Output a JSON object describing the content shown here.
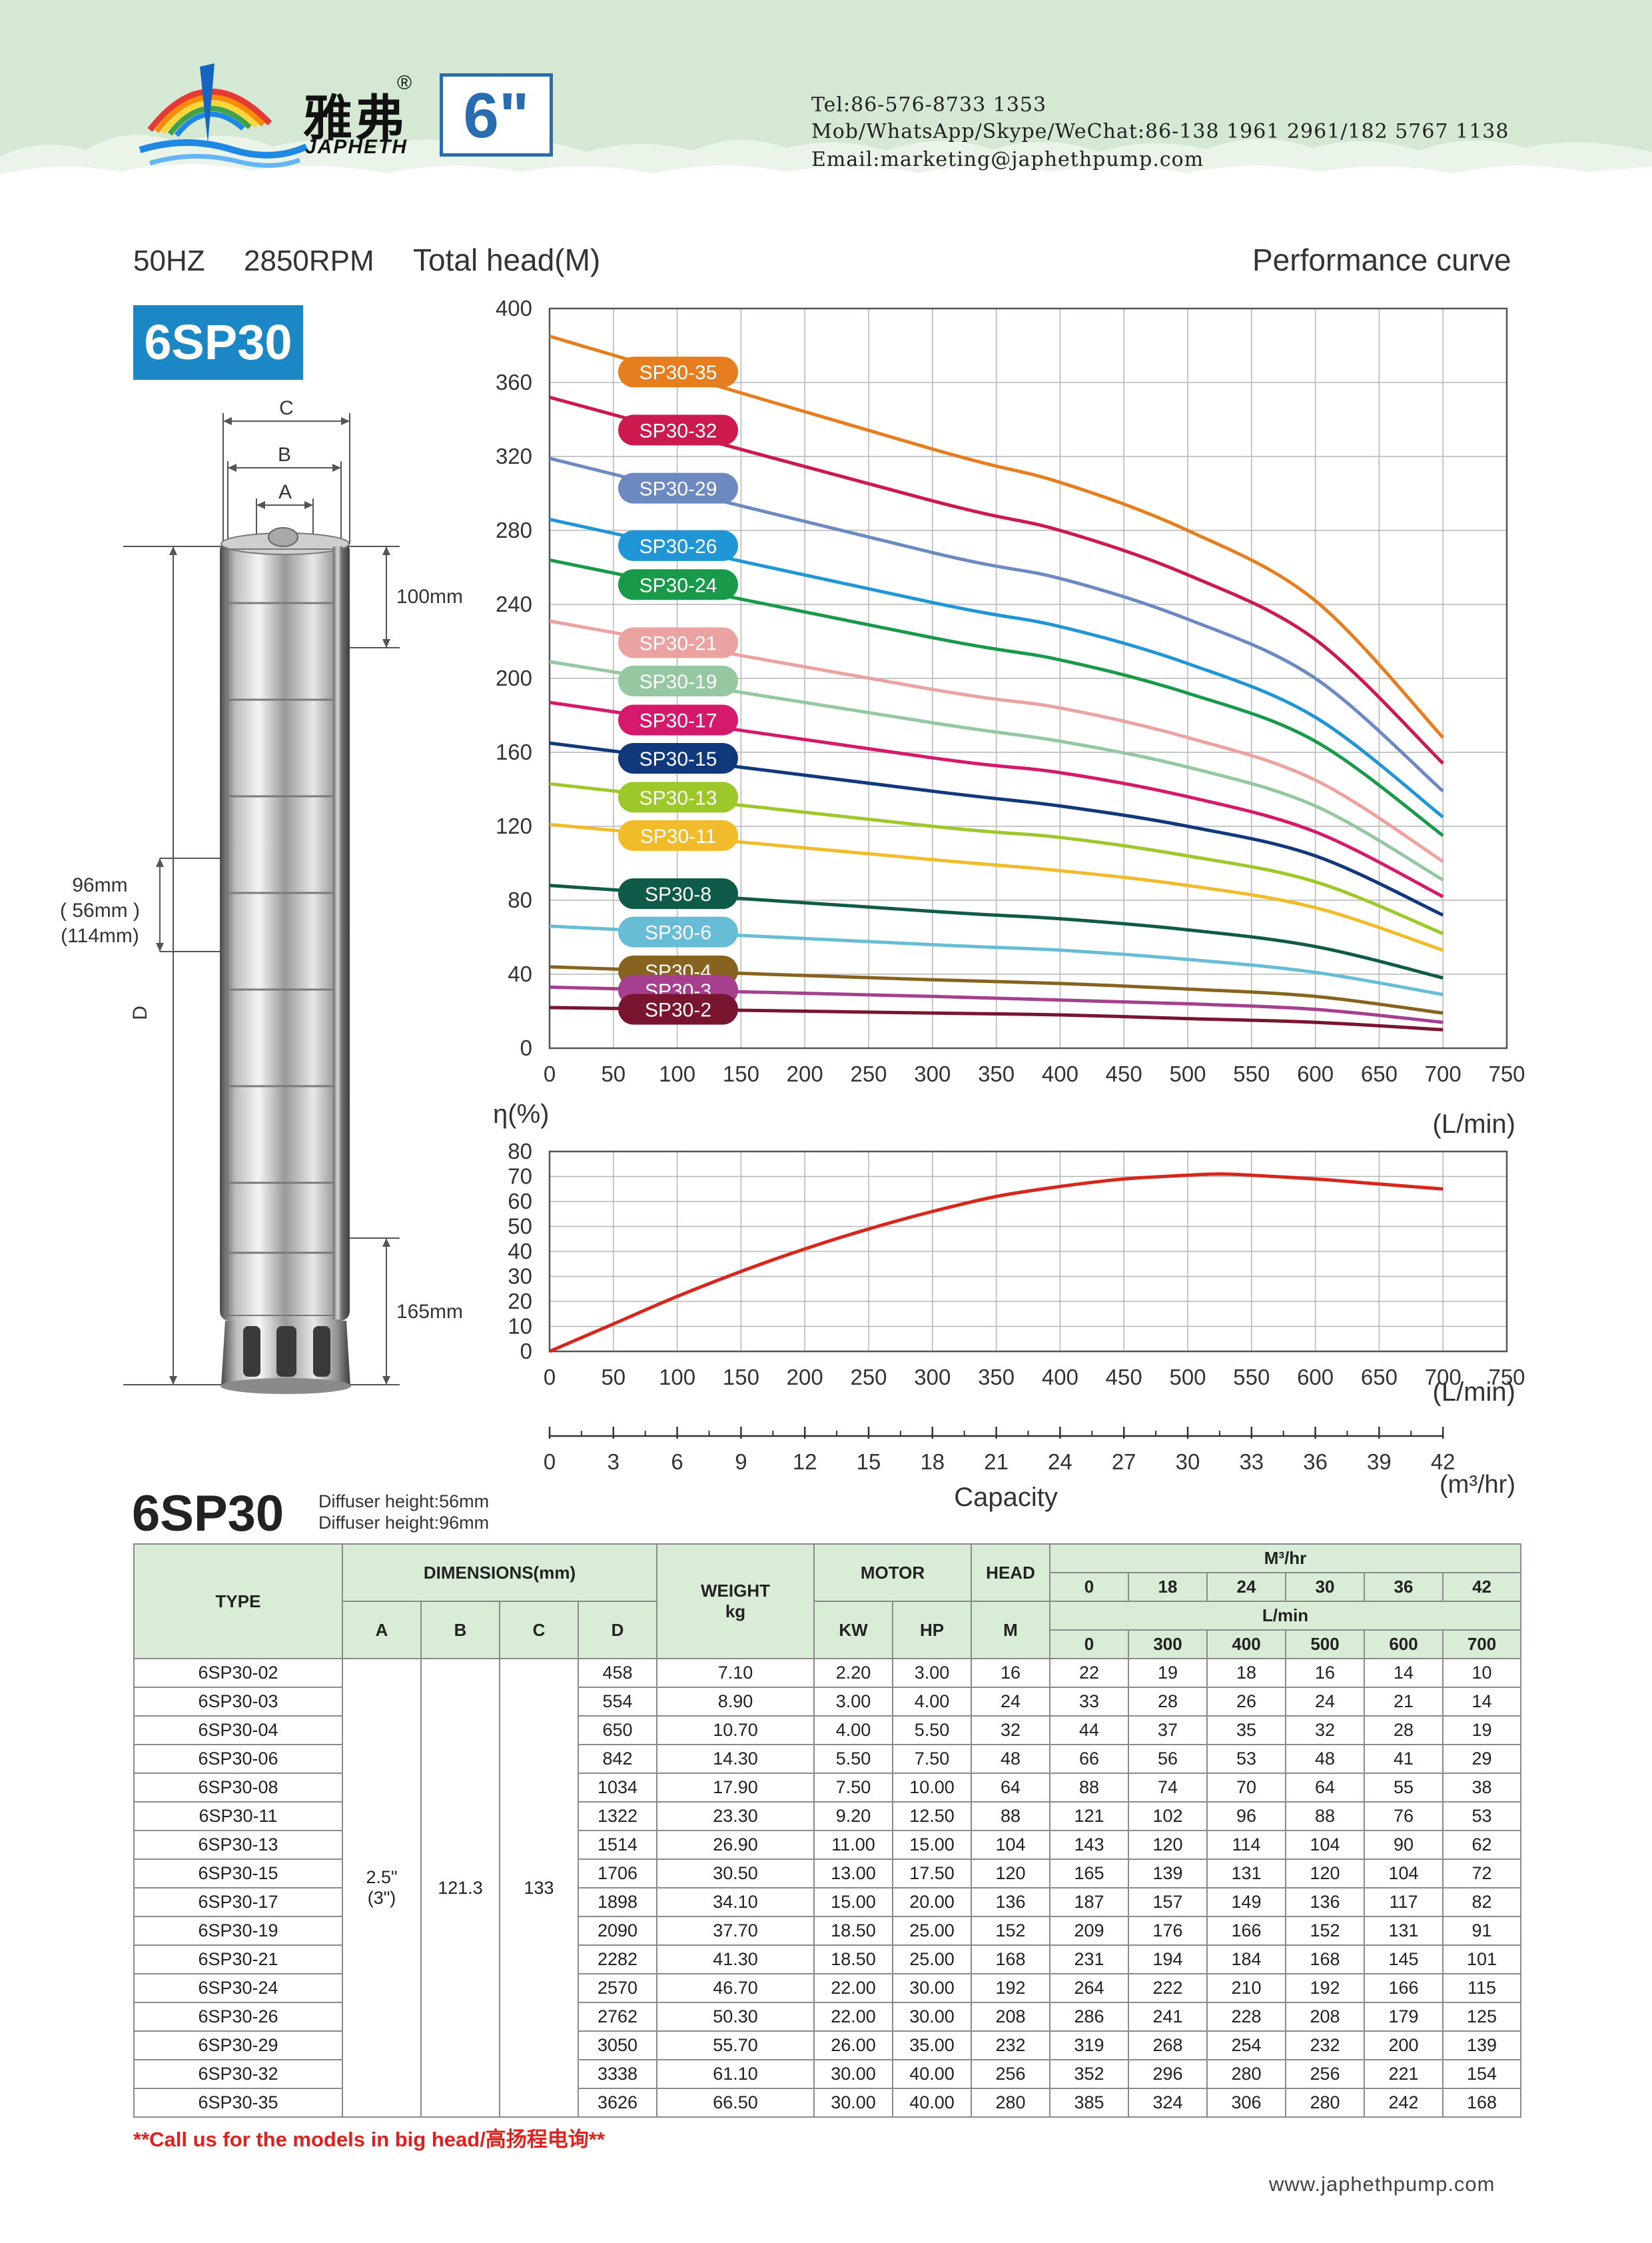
{
  "header": {
    "brand_cn": "雅弗",
    "brand_reg": "®",
    "brand_en": "JAPHETH",
    "size_label": "6\"",
    "contacts": [
      "Tel:86-576-8733 1353",
      "Mob/WhatsApp/Skype/WeChat:86-138 1961 2961/182 5767 1138",
      "Email:marketing@japhethpump.com"
    ]
  },
  "headings": {
    "freq": "50HZ",
    "rpm": "2850RPM",
    "total_head": "Total head(M)",
    "performance": "Performance curve",
    "model_badge": "6SP30",
    "table_model": "6SP30",
    "diffuser_1": "Diffuser height:56mm",
    "diffuser_2": "Diffuser height:96mm"
  },
  "drawing": {
    "dim_c": "C",
    "dim_b": "B",
    "dim_a": "A",
    "dim_d": "D",
    "top_len": "100mm",
    "mid_len_1": "96mm",
    "mid_len_2": "( 56mm )",
    "mid_len_3": "(114mm)",
    "bottom_len": "165mm"
  },
  "chart_data": [
    {
      "type": "line",
      "title": "Performance curve",
      "ylabel": "Total head(M)",
      "xlabel": "(L/min)",
      "xlim": [
        0,
        750
      ],
      "ylim": [
        0,
        400
      ],
      "x_ticks": [
        0,
        50,
        100,
        150,
        200,
        250,
        300,
        350,
        400,
        450,
        500,
        550,
        600,
        650,
        700,
        750
      ],
      "y_ticks": [
        0,
        40,
        80,
        120,
        160,
        200,
        240,
        280,
        320,
        360,
        400
      ],
      "grid": true,
      "x": [
        0,
        300,
        400,
        500,
        600,
        700
      ],
      "series": [
        {
          "name": "SP30-35",
          "color": "#e67e1f",
          "values": [
            385,
            324,
            306,
            280,
            242,
            168
          ]
        },
        {
          "name": "SP30-32",
          "color": "#cc1a4f",
          "values": [
            352,
            296,
            280,
            256,
            221,
            154
          ]
        },
        {
          "name": "SP30-29",
          "color": "#6d89c2",
          "values": [
            319,
            268,
            254,
            232,
            200,
            139
          ]
        },
        {
          "name": "SP30-26",
          "color": "#2196d6",
          "values": [
            286,
            241,
            228,
            208,
            179,
            125
          ]
        },
        {
          "name": "SP30-24",
          "color": "#199a4a",
          "values": [
            264,
            222,
            210,
            192,
            166,
            115
          ]
        },
        {
          "name": "SP30-21",
          "color": "#eaa3a0",
          "values": [
            231,
            194,
            184,
            168,
            145,
            101
          ]
        },
        {
          "name": "SP30-19",
          "color": "#95c8a1",
          "values": [
            209,
            176,
            166,
            152,
            131,
            91
          ]
        },
        {
          "name": "SP30-17",
          "color": "#d61a6b",
          "values": [
            187,
            157,
            149,
            136,
            117,
            82
          ]
        },
        {
          "name": "SP30-15",
          "color": "#12387c",
          "values": [
            165,
            139,
            131,
            120,
            104,
            72
          ]
        },
        {
          "name": "SP30-13",
          "color": "#9cc929",
          "values": [
            143,
            120,
            114,
            104,
            90,
            62
          ]
        },
        {
          "name": "SP30-11",
          "color": "#f2bb2a",
          "values": [
            121,
            102,
            96,
            88,
            76,
            53
          ]
        },
        {
          "name": "SP30-8",
          "color": "#0f5a48",
          "values": [
            88,
            74,
            70,
            64,
            55,
            38
          ]
        },
        {
          "name": "SP30-6",
          "color": "#67bcd6",
          "values": [
            66,
            56,
            53,
            48,
            41,
            29
          ]
        },
        {
          "name": "SP30-4",
          "color": "#86641f",
          "values": [
            44,
            37,
            35,
            32,
            28,
            19
          ]
        },
        {
          "name": "SP30-3",
          "color": "#a63f8e",
          "values": [
            33,
            28,
            26,
            24,
            21,
            14
          ]
        },
        {
          "name": "SP30-2",
          "color": "#7a1530",
          "values": [
            22,
            19,
            18,
            16,
            14,
            10
          ]
        }
      ]
    },
    {
      "type": "line",
      "ylabel": "η(%)",
      "xlabel": "(L/min)",
      "xlim": [
        0,
        750
      ],
      "ylim": [
        0,
        80
      ],
      "x_ticks": [
        0,
        50,
        100,
        150,
        200,
        250,
        300,
        350,
        400,
        450,
        500,
        550,
        600,
        650,
        700,
        750
      ],
      "y_ticks": [
        0,
        10,
        20,
        30,
        40,
        50,
        60,
        70,
        80
      ],
      "grid": true,
      "series": [
        {
          "color": "#d8261c",
          "x": [
            0,
            50,
            100,
            150,
            200,
            250,
            300,
            350,
            400,
            450,
            500,
            525,
            550,
            600,
            650,
            700
          ],
          "values": [
            0,
            11,
            22,
            32,
            41,
            49,
            56,
            62,
            66,
            69,
            70.5,
            71,
            70.5,
            69,
            67,
            65
          ]
        }
      ]
    },
    {
      "type": "axis",
      "xlabel": "Capacity",
      "unit": "(m³/hr)",
      "ticks": [
        0,
        3,
        6,
        9,
        12,
        15,
        18,
        21,
        24,
        27,
        30,
        33,
        36,
        39,
        42
      ]
    }
  ],
  "table": {
    "type_header": "TYPE",
    "dimensions_header": "DIMENSIONS(mm)",
    "dim_cols": [
      "A",
      "B",
      "C",
      "D"
    ],
    "weight_header": "WEIGHT",
    "weight_unit": "kg",
    "motor_header": "MOTOR",
    "motor_cols": [
      "KW",
      "HP"
    ],
    "head_header": "HEAD",
    "head_unit": "M",
    "flow_m3_label": "M³/hr",
    "flow_m3": [
      "0",
      "18",
      "24",
      "30",
      "36",
      "42"
    ],
    "flow_lmin_label": "L/min",
    "flow_lmin": [
      "0",
      "300",
      "400",
      "500",
      "600",
      "700"
    ],
    "a_value": "2.5\"",
    "a_value_2": "(3\")",
    "b_value": "121.3",
    "c_value": "133",
    "rows": [
      {
        "type": "6SP30-02",
        "d": "458",
        "weight": "7.10",
        "kw": "2.20",
        "hp": "3.00",
        "head": "16",
        "flows": [
          "22",
          "19",
          "18",
          "16",
          "14",
          "10"
        ]
      },
      {
        "type": "6SP30-03",
        "d": "554",
        "weight": "8.90",
        "kw": "3.00",
        "hp": "4.00",
        "head": "24",
        "flows": [
          "33",
          "28",
          "26",
          "24",
          "21",
          "14"
        ]
      },
      {
        "type": "6SP30-04",
        "d": "650",
        "weight": "10.70",
        "kw": "4.00",
        "hp": "5.50",
        "head": "32",
        "flows": [
          "44",
          "37",
          "35",
          "32",
          "28",
          "19"
        ]
      },
      {
        "type": "6SP30-06",
        "d": "842",
        "weight": "14.30",
        "kw": "5.50",
        "hp": "7.50",
        "head": "48",
        "flows": [
          "66",
          "56",
          "53",
          "48",
          "41",
          "29"
        ]
      },
      {
        "type": "6SP30-08",
        "d": "1034",
        "weight": "17.90",
        "kw": "7.50",
        "hp": "10.00",
        "head": "64",
        "flows": [
          "88",
          "74",
          "70",
          "64",
          "55",
          "38"
        ]
      },
      {
        "type": "6SP30-11",
        "d": "1322",
        "weight": "23.30",
        "kw": "9.20",
        "hp": "12.50",
        "head": "88",
        "flows": [
          "121",
          "102",
          "96",
          "88",
          "76",
          "53"
        ]
      },
      {
        "type": "6SP30-13",
        "d": "1514",
        "weight": "26.90",
        "kw": "11.00",
        "hp": "15.00",
        "head": "104",
        "flows": [
          "143",
          "120",
          "114",
          "104",
          "90",
          "62"
        ]
      },
      {
        "type": "6SP30-15",
        "d": "1706",
        "weight": "30.50",
        "kw": "13.00",
        "hp": "17.50",
        "head": "120",
        "flows": [
          "165",
          "139",
          "131",
          "120",
          "104",
          "72"
        ]
      },
      {
        "type": "6SP30-17",
        "d": "1898",
        "weight": "34.10",
        "kw": "15.00",
        "hp": "20.00",
        "head": "136",
        "flows": [
          "187",
          "157",
          "149",
          "136",
          "117",
          "82"
        ]
      },
      {
        "type": "6SP30-19",
        "d": "2090",
        "weight": "37.70",
        "kw": "18.50",
        "hp": "25.00",
        "head": "152",
        "flows": [
          "209",
          "176",
          "166",
          "152",
          "131",
          "91"
        ]
      },
      {
        "type": "6SP30-21",
        "d": "2282",
        "weight": "41.30",
        "kw": "18.50",
        "hp": "25.00",
        "head": "168",
        "flows": [
          "231",
          "194",
          "184",
          "168",
          "145",
          "101"
        ]
      },
      {
        "type": "6SP30-24",
        "d": "2570",
        "weight": "46.70",
        "kw": "22.00",
        "hp": "30.00",
        "head": "192",
        "flows": [
          "264",
          "222",
          "210",
          "192",
          "166",
          "115"
        ]
      },
      {
        "type": "6SP30-26",
        "d": "2762",
        "weight": "50.30",
        "kw": "22.00",
        "hp": "30.00",
        "head": "208",
        "flows": [
          "286",
          "241",
          "228",
          "208",
          "179",
          "125"
        ]
      },
      {
        "type": "6SP30-29",
        "d": "3050",
        "weight": "55.70",
        "kw": "26.00",
        "hp": "35.00",
        "head": "232",
        "flows": [
          "319",
          "268",
          "254",
          "232",
          "200",
          "139"
        ]
      },
      {
        "type": "6SP30-32",
        "d": "3338",
        "weight": "61.10",
        "kw": "30.00",
        "hp": "40.00",
        "head": "256",
        "flows": [
          "352",
          "296",
          "280",
          "256",
          "221",
          "154"
        ]
      },
      {
        "type": "6SP30-35",
        "d": "3626",
        "weight": "66.50",
        "kw": "30.00",
        "hp": "40.00",
        "head": "280",
        "flows": [
          "385",
          "324",
          "306",
          "280",
          "242",
          "168"
        ]
      }
    ]
  },
  "footer": {
    "note": "**Call us for the models in big head/高扬程电询**",
    "website": "www.japhethpump.com"
  },
  "colors": {
    "header_bg": "#d5e8d3",
    "brand_blue": "#2a6cb0",
    "badge_blue": "#1b88c5",
    "table_header_bg": "#d9ecd6",
    "efficiency_line": "#d8261c",
    "note_red": "#e0201c"
  }
}
